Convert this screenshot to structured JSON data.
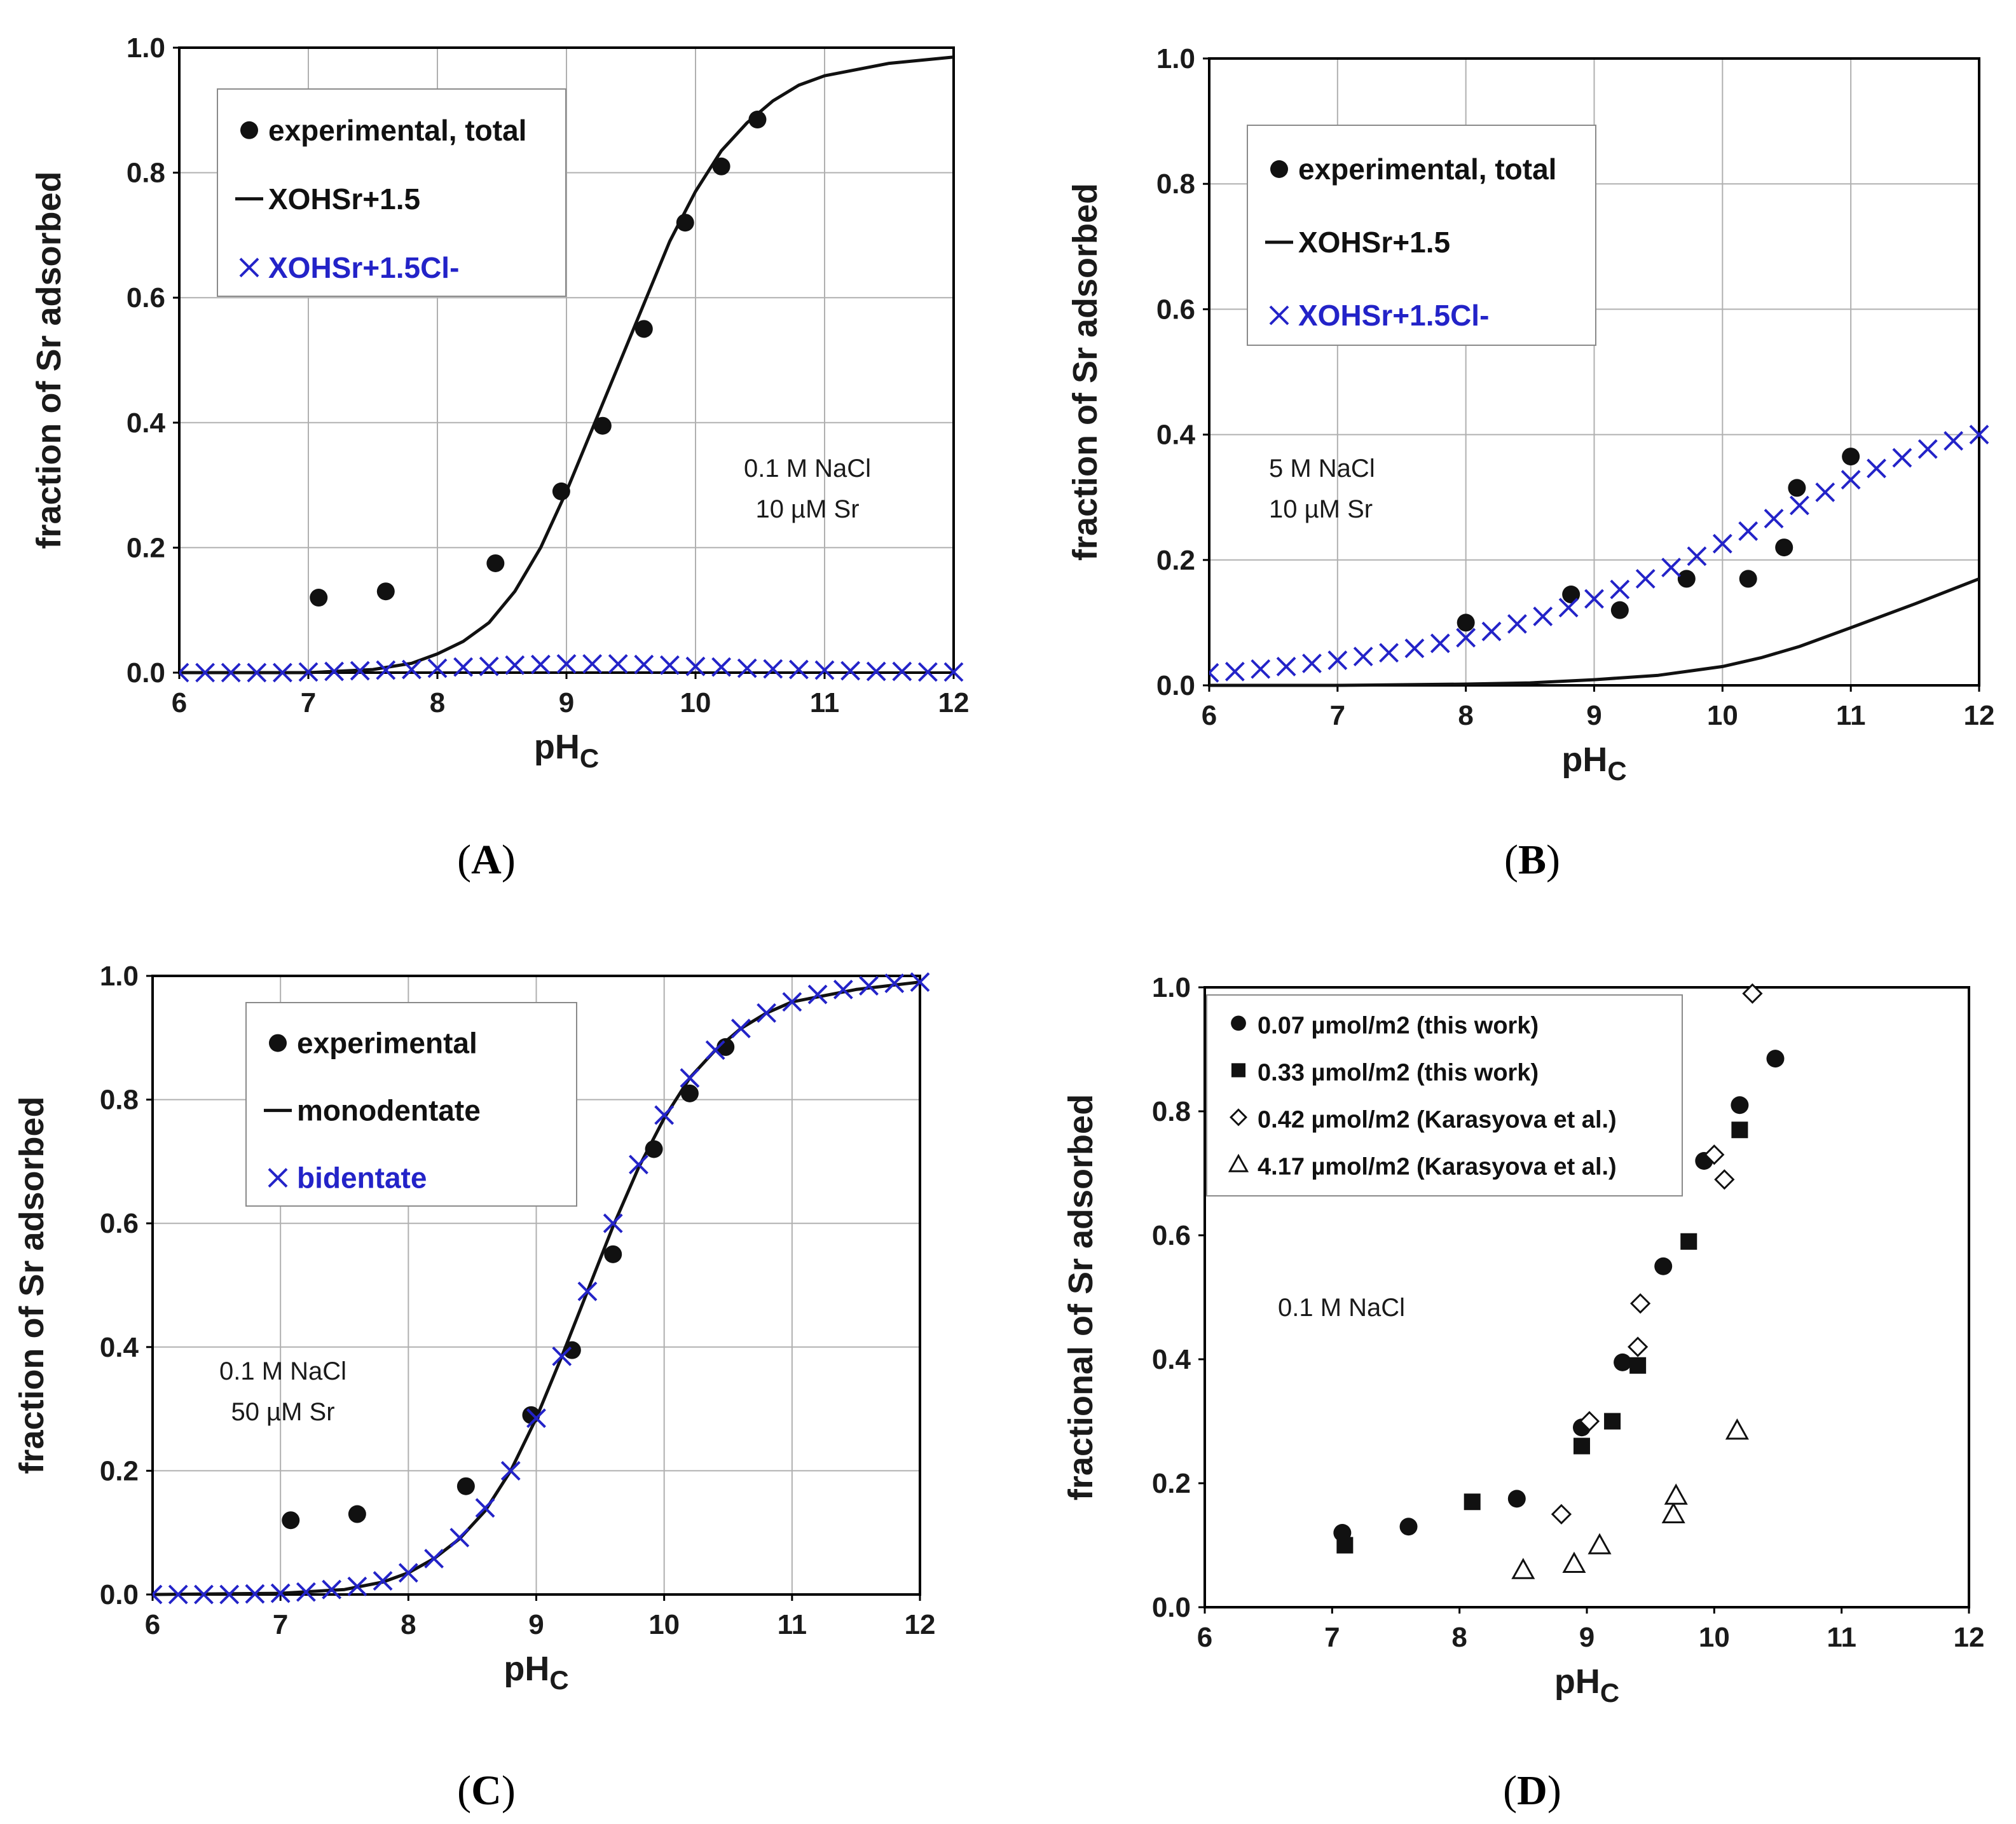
{
  "colors": {
    "blue": "#2323c8",
    "black": "#111111",
    "grid": "#b0b0b0"
  },
  "chart_data": [
    {
      "type": "scatter",
      "panel": "(A)",
      "panel_letter": "A",
      "xlabel": "pH",
      "xlabel_sub": "C",
      "ylabel": "fraction of Sr adsorbed",
      "xlim": [
        6,
        12
      ],
      "ylim": [
        0,
        1
      ],
      "xticks": [
        "6",
        "7",
        "8",
        "9",
        "10",
        "11",
        "12"
      ],
      "yticks": [
        "0.0",
        "0.2",
        "0.4",
        "0.6",
        "0.8",
        "1.0"
      ],
      "grid": true,
      "note": [
        "0.1 M NaCl",
        "10 µM Sr"
      ],
      "legend": [
        {
          "marker": "circle",
          "label": "experimental, total",
          "color": "#111111"
        },
        {
          "marker": "line",
          "label": "XOHSr+1.5",
          "color": "#111111"
        },
        {
          "marker": "x",
          "label": "XOHSr+1.5Cl-",
          "color": "#2323c8"
        }
      ],
      "series": [
        {
          "name": "experimental, total",
          "style": "circle",
          "x": [
            7.08,
            7.6,
            8.45,
            8.96,
            9.28,
            9.6,
            9.92,
            10.2,
            10.48
          ],
          "y": [
            0.12,
            0.13,
            0.175,
            0.29,
            0.395,
            0.55,
            0.72,
            0.81,
            0.885
          ]
        },
        {
          "name": "XOHSr+1.5",
          "style": "line",
          "x": [
            6,
            7,
            7.5,
            7.8,
            8.0,
            8.2,
            8.4,
            8.6,
            8.8,
            9.0,
            9.2,
            9.4,
            9.6,
            9.8,
            10.0,
            10.2,
            10.4,
            10.6,
            10.8,
            11.0,
            11.5,
            12.0
          ],
          "y": [
            0.0,
            0.0,
            0.005,
            0.015,
            0.03,
            0.05,
            0.08,
            0.13,
            0.2,
            0.29,
            0.39,
            0.49,
            0.59,
            0.69,
            0.77,
            0.835,
            0.88,
            0.915,
            0.94,
            0.955,
            0.975,
            0.985
          ]
        },
        {
          "name": "XOHSr+1.5Cl-",
          "style": "x",
          "x": [
            6.0,
            6.2,
            6.4,
            6.6,
            6.8,
            7.0,
            7.2,
            7.4,
            7.6,
            7.8,
            8.0,
            8.2,
            8.4,
            8.6,
            8.8,
            9.0,
            9.2,
            9.4,
            9.6,
            9.8,
            10.0,
            10.2,
            10.4,
            10.6,
            10.8,
            11.0,
            11.2,
            11.4,
            11.6,
            11.8,
            12.0
          ],
          "y": [
            0.0,
            0.0,
            0.0,
            0.0,
            0.0,
            0.001,
            0.002,
            0.003,
            0.004,
            0.005,
            0.007,
            0.009,
            0.01,
            0.012,
            0.013,
            0.014,
            0.014,
            0.014,
            0.013,
            0.012,
            0.01,
            0.009,
            0.007,
            0.006,
            0.005,
            0.004,
            0.003,
            0.002,
            0.002,
            0.001,
            0.001
          ]
        }
      ]
    },
    {
      "type": "scatter",
      "panel": "(B)",
      "panel_letter": "B",
      "xlabel": "pH",
      "xlabel_sub": "C",
      "ylabel": "fraction of Sr adsorbed",
      "xlim": [
        6,
        12
      ],
      "ylim": [
        0,
        1
      ],
      "xticks": [
        "6",
        "7",
        "8",
        "9",
        "10",
        "11",
        "12"
      ],
      "yticks": [
        "0.0",
        "0.2",
        "0.4",
        "0.6",
        "0.8",
        "1.0"
      ],
      "grid": true,
      "note": [
        "5 M NaCl",
        "10 µM Sr"
      ],
      "legend": [
        {
          "marker": "circle",
          "label": "experimental, total",
          "color": "#111111"
        },
        {
          "marker": "line",
          "label": "XOHSr+1.5",
          "color": "#111111"
        },
        {
          "marker": "x",
          "label": "XOHSr+1.5Cl-",
          "color": "#2323c8"
        }
      ],
      "series": [
        {
          "name": "experimental, total",
          "style": "circle",
          "x": [
            8.0,
            8.82,
            9.2,
            9.72,
            10.2,
            10.48,
            10.58,
            11.0
          ],
          "y": [
            0.1,
            0.145,
            0.12,
            0.17,
            0.17,
            0.22,
            0.315,
            0.365
          ]
        },
        {
          "name": "XOHSr+1.5",
          "style": "line",
          "x": [
            6,
            7,
            8,
            8.5,
            9.0,
            9.5,
            10.0,
            10.3,
            10.6,
            11.0,
            11.5,
            12.0
          ],
          "y": [
            0.0,
            0.0,
            0.002,
            0.004,
            0.009,
            0.016,
            0.03,
            0.044,
            0.062,
            0.092,
            0.13,
            0.17
          ]
        },
        {
          "name": "XOHSr+1.5Cl-",
          "style": "x",
          "x": [
            6.0,
            6.2,
            6.4,
            6.6,
            6.8,
            7.0,
            7.2,
            7.4,
            7.6,
            7.8,
            8.0,
            8.2,
            8.4,
            8.6,
            8.8,
            9.0,
            9.2,
            9.4,
            9.6,
            9.8,
            10.0,
            10.2,
            10.4,
            10.6,
            10.8,
            11.0,
            11.2,
            11.4,
            11.6,
            11.8,
            12.0
          ],
          "y": [
            0.02,
            0.022,
            0.026,
            0.03,
            0.035,
            0.04,
            0.046,
            0.052,
            0.059,
            0.067,
            0.076,
            0.086,
            0.098,
            0.11,
            0.124,
            0.138,
            0.153,
            0.17,
            0.188,
            0.206,
            0.226,
            0.246,
            0.266,
            0.287,
            0.308,
            0.328,
            0.346,
            0.363,
            0.377,
            0.39,
            0.4
          ]
        }
      ]
    },
    {
      "type": "scatter",
      "panel": "(C)",
      "panel_letter": "C",
      "xlabel": "pH",
      "xlabel_sub": "C",
      "ylabel": "fraction of Sr adsorbed",
      "xlim": [
        6,
        12
      ],
      "ylim": [
        0,
        1
      ],
      "xticks": [
        "6",
        "7",
        "8",
        "9",
        "10",
        "11",
        "12"
      ],
      "yticks": [
        "0.0",
        "0.2",
        "0.4",
        "0.6",
        "0.8",
        "1.0"
      ],
      "grid": true,
      "note": [
        "0.1 M NaCl",
        "50 µM Sr"
      ],
      "legend": [
        {
          "marker": "circle",
          "label": "experimental",
          "color": "#111111"
        },
        {
          "marker": "line",
          "label": "monodentate",
          "color": "#111111"
        },
        {
          "marker": "x",
          "label": "bidentate",
          "color": "#2323c8"
        }
      ],
      "series": [
        {
          "name": "experimental",
          "style": "circle",
          "x": [
            7.08,
            7.6,
            8.45,
            8.96,
            9.28,
            9.6,
            9.92,
            10.2,
            10.48
          ],
          "y": [
            0.12,
            0.13,
            0.175,
            0.29,
            0.395,
            0.55,
            0.72,
            0.81,
            0.885
          ]
        },
        {
          "name": "monodentate",
          "style": "line",
          "x": [
            6,
            7,
            7.5,
            7.8,
            8.0,
            8.2,
            8.4,
            8.6,
            8.8,
            9.0,
            9.2,
            9.4,
            9.6,
            9.8,
            10.0,
            10.2,
            10.4,
            10.6,
            10.8,
            11.0,
            11.5,
            12.0
          ],
          "y": [
            0.0,
            0.002,
            0.008,
            0.02,
            0.035,
            0.058,
            0.09,
            0.135,
            0.2,
            0.285,
            0.385,
            0.49,
            0.595,
            0.69,
            0.77,
            0.835,
            0.88,
            0.915,
            0.94,
            0.958,
            0.978,
            0.99
          ]
        },
        {
          "name": "bidentate",
          "style": "x",
          "x": [
            6.0,
            6.2,
            6.4,
            6.6,
            6.8,
            7.0,
            7.2,
            7.4,
            7.6,
            7.8,
            8.0,
            8.2,
            8.4,
            8.6,
            8.8,
            9.0,
            9.2,
            9.4,
            9.6,
            9.8,
            10.0,
            10.2,
            10.4,
            10.6,
            10.8,
            11.0,
            11.2,
            11.4,
            11.6,
            11.8,
            12.0
          ],
          "y": [
            0.0,
            0.0,
            0.0,
            0.0,
            0.001,
            0.002,
            0.004,
            0.008,
            0.013,
            0.022,
            0.035,
            0.058,
            0.092,
            0.14,
            0.2,
            0.285,
            0.385,
            0.49,
            0.6,
            0.695,
            0.775,
            0.835,
            0.88,
            0.915,
            0.94,
            0.958,
            0.97,
            0.978,
            0.984,
            0.988,
            0.99
          ]
        }
      ]
    },
    {
      "type": "scatter",
      "panel": "(D)",
      "panel_letter": "D",
      "xlabel": "pH",
      "xlabel_sub": "C",
      "ylabel": "fractional of Sr adsorbed",
      "xlim": [
        6,
        12
      ],
      "ylim": [
        0,
        1
      ],
      "xticks": [
        "6",
        "7",
        "8",
        "9",
        "10",
        "11",
        "12"
      ],
      "yticks": [
        "0.0",
        "0.2",
        "0.4",
        "0.6",
        "0.8",
        "1.0"
      ],
      "grid": false,
      "note": [
        "0.1 M NaCl"
      ],
      "legend": [
        {
          "marker": "circle",
          "label": "0.07 µmol/m2 (this work)",
          "color": "#111111"
        },
        {
          "marker": "square",
          "label": "0.33 µmol/m2 (this work)",
          "color": "#111111"
        },
        {
          "marker": "diamond",
          "label": "0.42 µmol/m2 (Karasyova et al.)",
          "color": "#111111"
        },
        {
          "marker": "triangle",
          "label": "4.17 µmol/m2 (Karasyova et al.)",
          "color": "#111111"
        }
      ],
      "series": [
        {
          "name": "0.07 µmol/m2 (this work)",
          "style": "circle",
          "x": [
            7.08,
            7.6,
            8.45,
            8.96,
            9.28,
            9.6,
            9.92,
            10.2,
            10.48
          ],
          "y": [
            0.12,
            0.13,
            0.175,
            0.29,
            0.395,
            0.55,
            0.72,
            0.81,
            0.885
          ]
        },
        {
          "name": "0.33 µmol/m2 (this work)",
          "style": "square",
          "x": [
            7.1,
            8.1,
            8.96,
            9.2,
            9.4,
            9.8,
            10.2
          ],
          "y": [
            0.1,
            0.17,
            0.26,
            0.3,
            0.39,
            0.59,
            0.77
          ]
        },
        {
          "name": "0.42 µmol/m2 (Karasyova et al.)",
          "style": "diamond",
          "x": [
            8.8,
            9.02,
            9.4,
            9.42,
            10.0,
            10.08,
            10.3
          ],
          "y": [
            0.15,
            0.3,
            0.42,
            0.49,
            0.73,
            0.69,
            0.99
          ]
        },
        {
          "name": "4.17 µmol/m2 (Karasyova et al.)",
          "style": "triangle",
          "x": [
            8.5,
            8.9,
            9.1,
            9.68,
            9.7,
            10.18
          ],
          "y": [
            0.06,
            0.07,
            0.1,
            0.15,
            0.18,
            0.285
          ]
        }
      ]
    }
  ]
}
